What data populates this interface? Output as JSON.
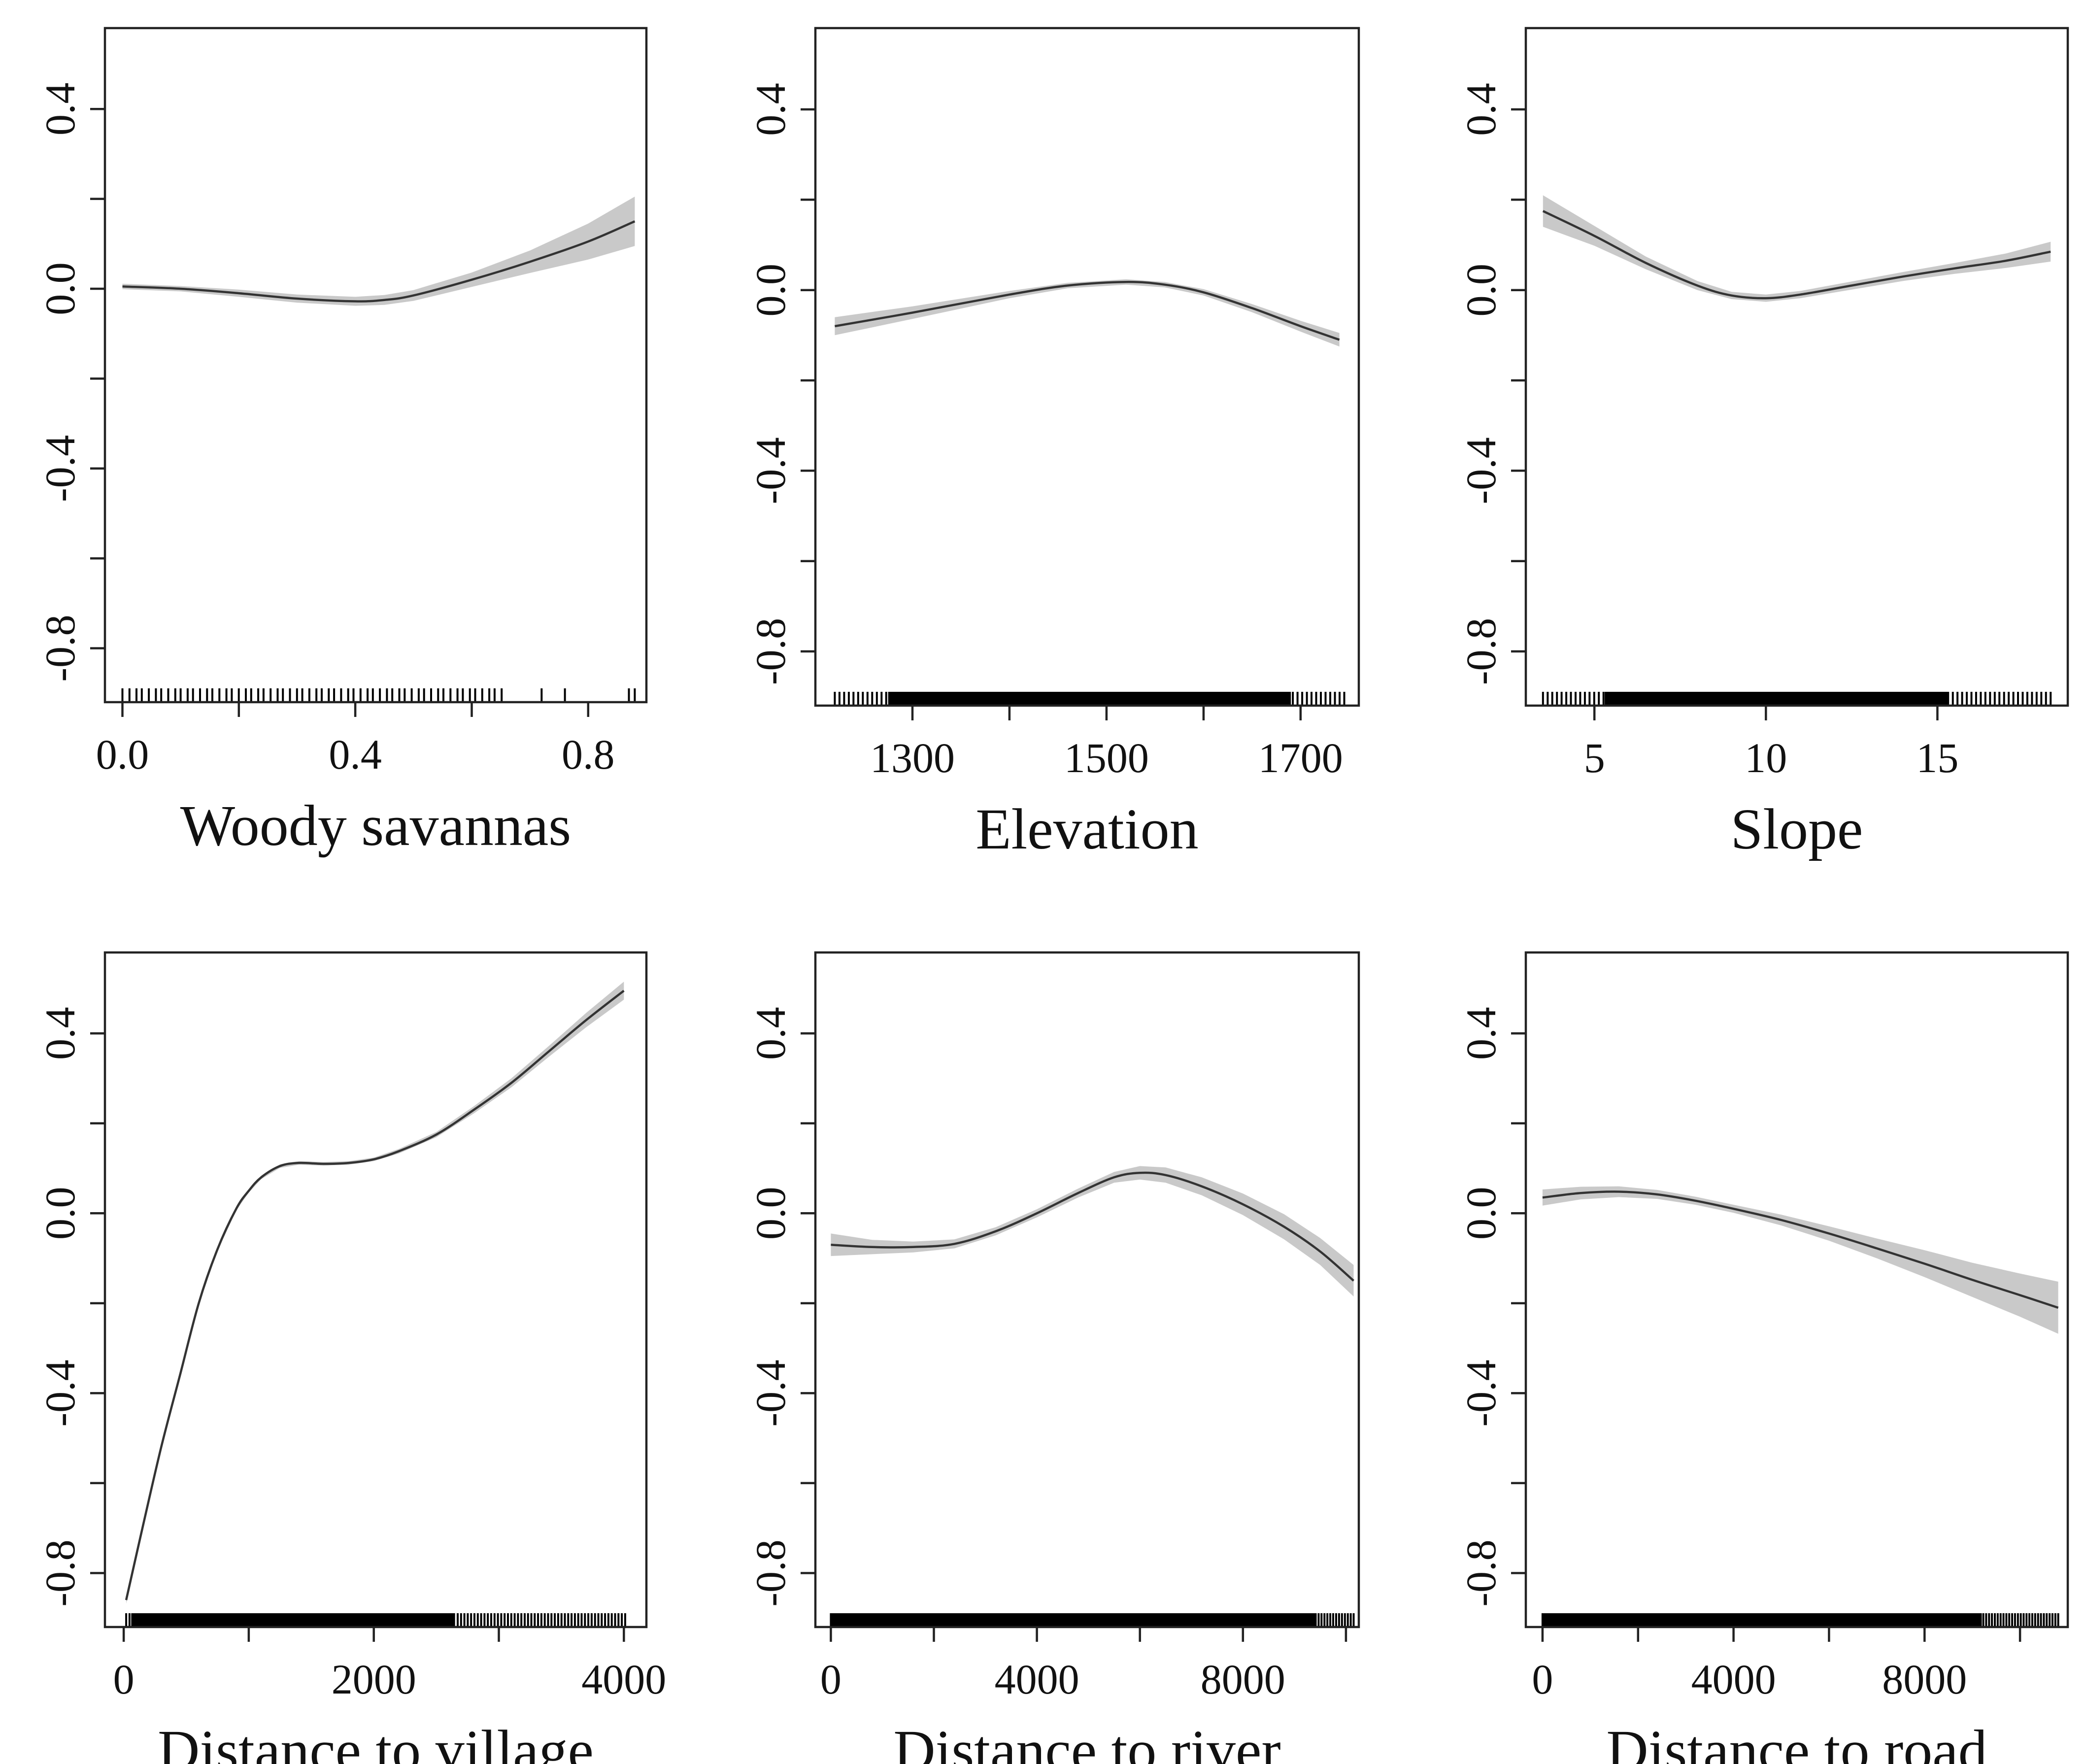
{
  "figure": {
    "type": "partial-dependence-grid",
    "layout": "2 rows x 3 columns",
    "shared_y_tick_labels": [
      "-0.8",
      "-0.4",
      "0.0",
      "0.4"
    ],
    "colors": {
      "curve": "#333333",
      "band": "#c9c9c9",
      "rug": "#000000",
      "frame": "#222222"
    }
  },
  "chart_data": [
    {
      "id": "woody-savannas",
      "type": "line",
      "title": "",
      "xlabel": "Woody savannas",
      "ylabel": "",
      "xlim": [
        -0.03,
        0.9
      ],
      "ylim": [
        -0.92,
        0.58
      ],
      "x_ticks": [
        0.0,
        0.2,
        0.4,
        0.6,
        0.8
      ],
      "x_tick_labels": [
        "0.0",
        "0.4",
        "0.8"
      ],
      "x_tick_label_values": [
        0.0,
        0.4,
        0.8
      ],
      "y_ticks": [
        -0.8,
        -0.6,
        -0.4,
        -0.2,
        0.0,
        0.2,
        0.4
      ],
      "y_tick_labels": [
        "-0.8",
        "-0.4",
        "0.0",
        "0.4"
      ],
      "y_tick_label_values": [
        -0.8,
        -0.4,
        0.0,
        0.4
      ],
      "x": [
        0.0,
        0.1,
        0.2,
        0.3,
        0.4,
        0.45,
        0.5,
        0.6,
        0.7,
        0.8,
        0.88
      ],
      "y": [
        0.005,
        0.0,
        -0.01,
        -0.022,
        -0.028,
        -0.025,
        -0.015,
        0.02,
        0.06,
        0.105,
        0.15
      ],
      "band_half_width": [
        0.006,
        0.006,
        0.008,
        0.009,
        0.01,
        0.011,
        0.012,
        0.016,
        0.025,
        0.04,
        0.055
      ],
      "rug": {
        "from": 0.0,
        "to": 0.65,
        "n": 60,
        "extra": [
          0.72,
          0.76,
          0.87,
          0.88
        ]
      }
    },
    {
      "id": "elevation",
      "type": "line",
      "title": "",
      "xlabel": "Elevation",
      "ylabel": "",
      "xlim": [
        1200,
        1760
      ],
      "ylim": [
        -0.92,
        0.58
      ],
      "x_ticks": [
        1300,
        1400,
        1500,
        1600,
        1700
      ],
      "x_tick_labels": [
        "1300",
        "1500",
        "1700"
      ],
      "x_tick_label_values": [
        1300,
        1500,
        1700
      ],
      "y_ticks": [
        -0.8,
        -0.6,
        -0.4,
        -0.2,
        0.0,
        0.2,
        0.4
      ],
      "y_tick_labels": [
        "-0.8",
        "-0.4",
        "0.0",
        "0.4"
      ],
      "y_tick_label_values": [
        -0.8,
        -0.4,
        0.0,
        0.4
      ],
      "x": [
        1220,
        1300,
        1400,
        1460,
        1520,
        1560,
        1600,
        1650,
        1700,
        1740
      ],
      "y": [
        -0.08,
        -0.05,
        -0.01,
        0.01,
        0.018,
        0.012,
        -0.005,
        -0.04,
        -0.08,
        -0.11
      ],
      "band_half_width": [
        0.02,
        0.014,
        0.008,
        0.006,
        0.006,
        0.006,
        0.007,
        0.009,
        0.012,
        0.015
      ],
      "rug": {
        "from": 1220,
        "to": 1745,
        "n": 110,
        "dense_from": 1275,
        "dense_to": 1690
      }
    },
    {
      "id": "slope",
      "type": "line",
      "title": "",
      "xlabel": "Slope",
      "ylabel": "",
      "xlim": [
        3.0,
        18.8
      ],
      "ylim": [
        -0.92,
        0.58
      ],
      "x_ticks": [
        5,
        10,
        15
      ],
      "x_tick_labels": [
        "5",
        "10",
        "15"
      ],
      "x_tick_label_values": [
        5,
        10,
        15
      ],
      "y_ticks": [
        -0.8,
        -0.6,
        -0.4,
        -0.2,
        0.0,
        0.2,
        0.4
      ],
      "y_tick_labels": [
        "-0.8",
        "-0.4",
        "0.0",
        "0.4"
      ],
      "y_tick_label_values": [
        -0.8,
        -0.4,
        0.0,
        0.4
      ],
      "x": [
        3.5,
        5,
        6.5,
        8,
        9,
        10,
        11,
        12.5,
        14,
        15.5,
        17,
        18.3
      ],
      "y": [
        0.175,
        0.12,
        0.06,
        0.01,
        -0.012,
        -0.018,
        -0.01,
        0.01,
        0.03,
        0.048,
        0.065,
        0.085
      ],
      "band_half_width": [
        0.035,
        0.022,
        0.014,
        0.01,
        0.008,
        0.008,
        0.008,
        0.009,
        0.01,
        0.012,
        0.016,
        0.022
      ],
      "rug": {
        "from": 3.5,
        "to": 18.3,
        "n": 110,
        "dense_from": 5.3,
        "dense_to": 15.3
      }
    },
    {
      "id": "distance-to-village",
      "type": "line",
      "title": "",
      "xlabel": "Distance to village",
      "ylabel": "",
      "xlim": [
        -150,
        4180
      ],
      "ylim": [
        -0.92,
        0.58
      ],
      "x_ticks": [
        0,
        1000,
        2000,
        3000,
        4000
      ],
      "x_tick_labels": [
        "0",
        "2000",
        "4000"
      ],
      "x_tick_label_values": [
        0,
        2000,
        4000
      ],
      "y_ticks": [
        -0.8,
        -0.6,
        -0.4,
        -0.2,
        0.0,
        0.2,
        0.4
      ],
      "y_tick_labels": [
        "-0.8",
        "-0.4",
        "0.0",
        "0.4"
      ],
      "y_tick_label_values": [
        -0.8,
        -0.4,
        0.0,
        0.4
      ],
      "x": [
        20,
        150,
        300,
        450,
        600,
        750,
        900,
        1000,
        1100,
        1250,
        1400,
        1600,
        1800,
        2000,
        2200,
        2500,
        2800,
        3100,
        3400,
        3700,
        4000
      ],
      "y": [
        -0.86,
        -0.7,
        -0.52,
        -0.36,
        -0.2,
        -0.08,
        0.01,
        0.05,
        0.08,
        0.105,
        0.112,
        0.11,
        0.112,
        0.12,
        0.138,
        0.175,
        0.23,
        0.29,
        0.36,
        0.43,
        0.495
      ],
      "band_half_width": [
        0.008,
        0.006,
        0.005,
        0.004,
        0.004,
        0.004,
        0.004,
        0.004,
        0.004,
        0.004,
        0.004,
        0.004,
        0.004,
        0.004,
        0.005,
        0.006,
        0.008,
        0.01,
        0.012,
        0.016,
        0.02
      ],
      "rug": {
        "from": 20,
        "to": 4010,
        "n": 150,
        "dense_from": 60,
        "dense_to": 2650
      }
    },
    {
      "id": "distance-to-river",
      "type": "line",
      "title": "",
      "xlabel": "Distance to river",
      "ylabel": "",
      "xlim": [
        -300,
        10250
      ],
      "ylim": [
        -0.92,
        0.58
      ],
      "x_ticks": [
        0,
        2000,
        4000,
        6000,
        8000,
        10000
      ],
      "x_tick_labels": [
        "0",
        "4000",
        "8000"
      ],
      "x_tick_label_values": [
        0,
        4000,
        8000
      ],
      "y_ticks": [
        -0.8,
        -0.6,
        -0.4,
        -0.2,
        0.0,
        0.2,
        0.4
      ],
      "y_tick_labels": [
        "-0.8",
        "-0.4",
        "0.0",
        "0.4"
      ],
      "y_tick_label_values": [
        -0.8,
        -0.4,
        0.0,
        0.4
      ],
      "x": [
        0,
        800,
        1600,
        2400,
        3200,
        4000,
        4800,
        5500,
        6000,
        6500,
        7200,
        8000,
        8800,
        9500,
        10150
      ],
      "y": [
        -0.07,
        -0.075,
        -0.075,
        -0.068,
        -0.04,
        0.0,
        0.045,
        0.08,
        0.09,
        0.085,
        0.06,
        0.02,
        -0.03,
        -0.085,
        -0.15
      ],
      "band_half_width": [
        0.025,
        0.016,
        0.012,
        0.01,
        0.009,
        0.009,
        0.01,
        0.012,
        0.015,
        0.017,
        0.02,
        0.024,
        0.028,
        0.03,
        0.035
      ],
      "rug": {
        "from": 0,
        "to": 10150,
        "n": 180,
        "dense_from": 0,
        "dense_to": 9400
      }
    },
    {
      "id": "distance-to-road",
      "type": "line",
      "title": "",
      "xlabel": "Distance to road",
      "ylabel": "",
      "xlim": [
        -350,
        11000
      ],
      "ylim": [
        -0.92,
        0.58
      ],
      "x_ticks": [
        0,
        2000,
        4000,
        6000,
        8000,
        10000
      ],
      "x_tick_labels": [
        "0",
        "4000",
        "8000"
      ],
      "x_tick_label_values": [
        0,
        4000,
        8000
      ],
      "y_ticks": [
        -0.8,
        -0.6,
        -0.4,
        -0.2,
        0.0,
        0.2,
        0.4
      ],
      "y_tick_labels": [
        "-0.8",
        "-0.4",
        "0.0",
        "0.4"
      ],
      "y_tick_label_values": [
        -0.8,
        -0.4,
        0.0,
        0.4
      ],
      "x": [
        0,
        800,
        1600,
        2400,
        3200,
        4000,
        5000,
        6000,
        7000,
        8000,
        9000,
        10000,
        10800
      ],
      "y": [
        0.035,
        0.045,
        0.048,
        0.042,
        0.028,
        0.01,
        -0.015,
        -0.045,
        -0.078,
        -0.112,
        -0.148,
        -0.182,
        -0.21
      ],
      "band_half_width": [
        0.018,
        0.014,
        0.012,
        0.01,
        0.009,
        0.009,
        0.012,
        0.016,
        0.022,
        0.03,
        0.038,
        0.048,
        0.058
      ],
      "rug": {
        "from": 0,
        "to": 10800,
        "n": 180,
        "dense_from": 0,
        "dense_to": 9200
      }
    }
  ]
}
